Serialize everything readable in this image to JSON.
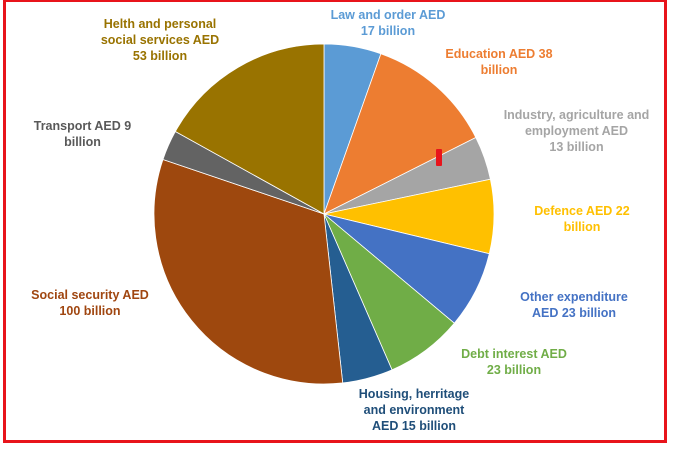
{
  "chart_data": {
    "type": "pie",
    "slices": [
      {
        "lines": [
          "Law and order AED",
          "17 billion"
        ],
        "value": 17,
        "color": "#5b9bd5",
        "label_color": "#5b9bd5"
      },
      {
        "lines": [
          "Education AED 38",
          "billion"
        ],
        "value": 38,
        "color": "#ed7d31",
        "label_color": "#ed7d31"
      },
      {
        "lines": [
          "Industry, agriculture and",
          "employment AED",
          "13 billion"
        ],
        "value": 13,
        "color": "#a5a5a5",
        "label_color": "#a5a5a5"
      },
      {
        "lines": [
          "Defence AED 22",
          "billion"
        ],
        "value": 22,
        "color": "#ffc000",
        "label_color": "#ffc000"
      },
      {
        "lines": [
          "Other expenditure",
          "AED 23 billion"
        ],
        "value": 23,
        "color": "#4472c4",
        "label_color": "#4472c4"
      },
      {
        "lines": [
          "Debt interest AED",
          "23 billion"
        ],
        "value": 23,
        "color": "#70ad47",
        "label_color": "#70ad47"
      },
      {
        "lines": [
          "Housing, herritage",
          "and environment",
          "AED 15 billion"
        ],
        "value": 15,
        "color": "#255e91",
        "label_color": "#1f4e79"
      },
      {
        "lines": [
          "Social security AED",
          "100 billion"
        ],
        "value": 100,
        "color": "#9e480e",
        "label_color": "#a04610"
      },
      {
        "lines": [
          "Transport AED 9",
          "billion"
        ],
        "value": 9,
        "color": "#636363",
        "label_color": "#595959"
      },
      {
        "lines": [
          "Helth and personal",
          "social services AED",
          "53 billion"
        ],
        "value": 53,
        "color": "#997300",
        "label_color": "#997300"
      }
    ],
    "start_angle_deg": 0,
    "direction": "clockwise",
    "legend": "none"
  }
}
